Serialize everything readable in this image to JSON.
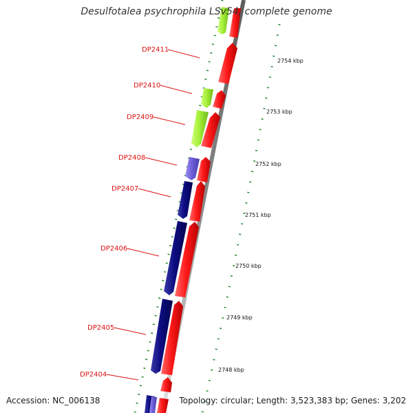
{
  "title": "Desulfotalea psychrophila LSv54, complete genome",
  "footer": {
    "accession": "Accession: NC_006138",
    "topology": "Topology: circular; Length: 3,523,383 bp; Genes: 3,202"
  },
  "colors": {
    "forward_cds": "#ee1111",
    "reverse_blue": "#0a0a7a",
    "reverse_green": "#99ee33",
    "reverse_purple": "#6655cc",
    "backbone": "#9a9a9a",
    "label": "#dd1111",
    "tick": "#228833"
  },
  "gene_labels": [
    "DP2411",
    "DP2410",
    "DP2409",
    "DP2408",
    "DP2407",
    "DP2406",
    "DP2405",
    "DP2404"
  ],
  "scale_labels": [
    "2754 kbp",
    "2753 kbp",
    "2752 kbp",
    "2751 kbp",
    "2750 kbp",
    "2749 kbp",
    "2748 kbp"
  ]
}
